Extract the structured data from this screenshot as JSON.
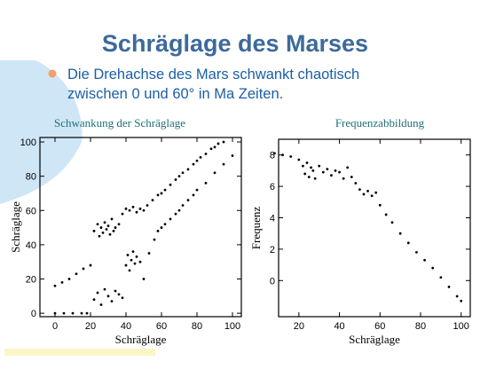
{
  "title": "Schräglage des Marses",
  "bullet_lines": [
    "Die Drehachse des Mars schwankt chaotisch",
    "zwischen 0 und 60° in Ma Zeiten."
  ],
  "chart_data": [
    {
      "type": "scatter",
      "title": "Schwankung der Schräglage",
      "x_label": "Schräglage",
      "y_label": "Schräglage",
      "xlim": [
        -8.5,
        105
      ],
      "ylim": [
        -2,
        102.6
      ],
      "xticks": [
        0,
        20,
        40,
        60,
        80,
        100
      ],
      "yticks": [
        0,
        20,
        40,
        60,
        80,
        100
      ],
      "series": [
        {
          "color": "#000000",
          "x": [
            0,
            4,
            8,
            12,
            16,
            20,
            22,
            24,
            25,
            26,
            27,
            28,
            29,
            30,
            31,
            32,
            33,
            34,
            36,
            38,
            40,
            42,
            44,
            46,
            48,
            50,
            52,
            55,
            58,
            60,
            62,
            65,
            68,
            70,
            72,
            75,
            78,
            80,
            82,
            85,
            88,
            90,
            92,
            95
          ],
          "values": [
            16,
            18,
            20,
            23,
            26,
            28,
            48,
            52,
            45,
            50,
            47,
            53,
            49,
            51,
            46,
            55,
            48,
            50,
            52,
            58,
            61,
            60,
            62,
            59,
            61,
            60,
            63,
            66,
            69,
            70,
            72,
            75,
            78,
            80,
            82,
            84,
            87,
            89,
            91,
            93,
            96,
            97,
            99,
            100
          ]
        },
        {
          "color": "#000000",
          "x": [
            0,
            5,
            10,
            15,
            18,
            22,
            24,
            26,
            28,
            30,
            32,
            34,
            36,
            38,
            40,
            41,
            42,
            43,
            44,
            45,
            46,
            48,
            50,
            53,
            56,
            58,
            60,
            62,
            65,
            68,
            70,
            72,
            75,
            78,
            80,
            85,
            90,
            95,
            100
          ],
          "values": [
            0,
            0,
            0,
            0,
            0,
            8,
            12,
            5,
            14,
            10,
            7,
            13,
            11,
            9,
            28,
            34,
            25,
            31,
            36,
            29,
            33,
            30,
            20,
            35,
            43,
            48,
            50,
            52,
            55,
            58,
            60,
            63,
            66,
            69,
            72,
            76,
            82,
            87,
            92
          ]
        }
      ]
    },
    {
      "type": "scatter",
      "title": "Frequenzabbildung",
      "x_label": "Schräglage",
      "y_label": "Frequenz",
      "xlim": [
        10,
        104.5
      ],
      "ylim": [
        -2.3,
        9
      ],
      "xticks": [
        20,
        40,
        60,
        80,
        100
      ],
      "yticks": [
        0,
        2,
        4,
        6,
        8
      ],
      "series": [
        {
          "color": "#000000",
          "x": [
            8,
            12,
            16,
            20,
            22,
            23,
            24,
            25,
            26,
            27,
            28,
            30,
            32,
            34,
            36,
            38,
            40,
            42,
            44,
            46,
            48,
            50,
            52,
            54,
            56,
            58,
            60,
            63,
            66,
            70,
            74,
            78,
            82,
            86,
            90,
            94,
            98,
            100
          ],
          "values": [
            8.1,
            8.0,
            7.9,
            7.7,
            7.3,
            6.8,
            7.5,
            6.6,
            7.2,
            7.0,
            6.5,
            7.3,
            6.9,
            7.1,
            6.7,
            7.0,
            6.9,
            6.5,
            7.2,
            6.6,
            6.2,
            5.8,
            5.5,
            5.7,
            5.4,
            5.6,
            4.8,
            4.2,
            3.7,
            3.0,
            2.4,
            1.8,
            1.3,
            0.8,
            0.2,
            -0.4,
            -1.0,
            -1.3
          ]
        }
      ]
    }
  ]
}
